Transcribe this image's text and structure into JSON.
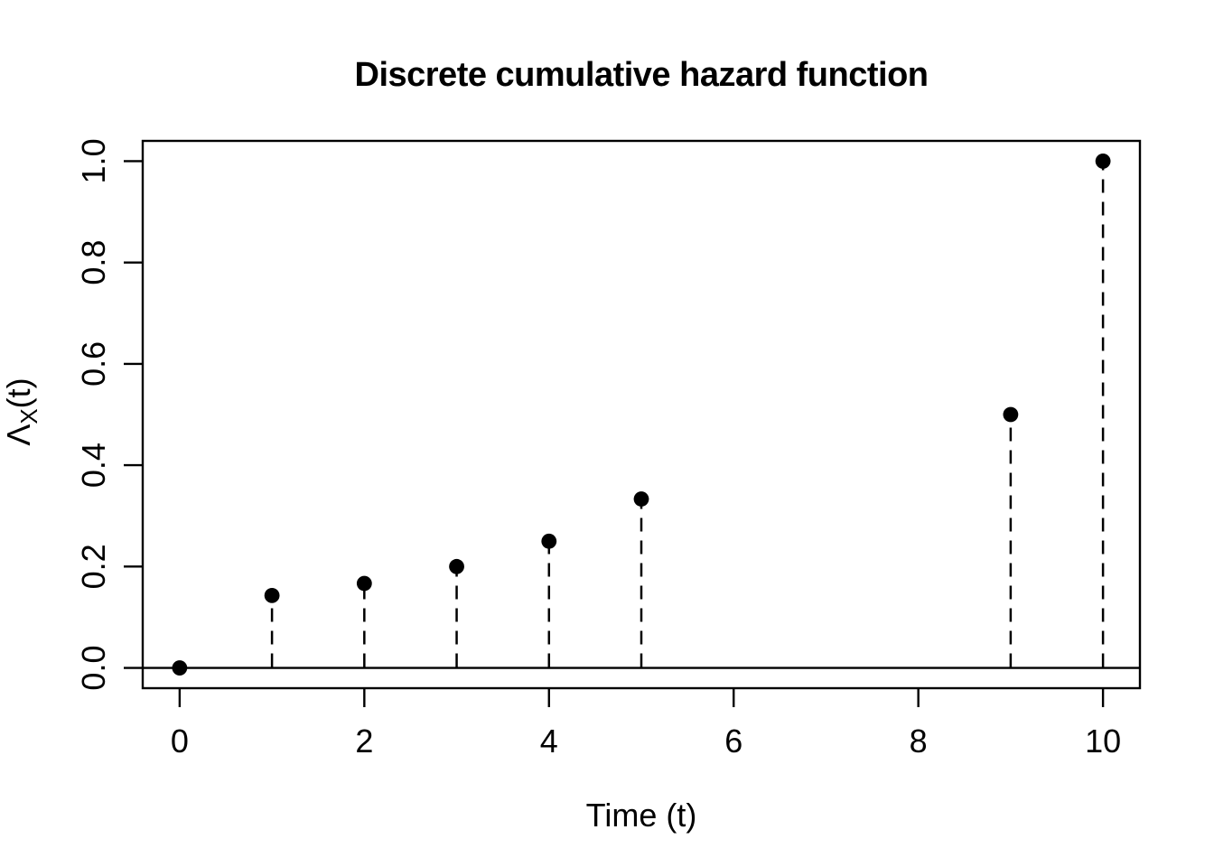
{
  "chart_data": {
    "type": "scatter",
    "subtype": "stem-plot",
    "title": "Discrete cumulative hazard function",
    "xlabel": "Time (t)",
    "ylabel": "ΛX(t)",
    "ylabel_parts": {
      "symbol": "Λ",
      "subscript": "X",
      "suffix": "(t)"
    },
    "x": [
      0,
      1,
      2,
      3,
      4,
      5,
      9,
      10
    ],
    "y": [
      0,
      0.1429,
      0.1667,
      0.2,
      0.25,
      0.3333,
      0.5,
      1.0
    ],
    "baseline_y": 0,
    "xlim": [
      -0.4,
      10.4
    ],
    "ylim": [
      -0.04,
      1.04
    ],
    "xticks": [
      0,
      2,
      4,
      6,
      8,
      10
    ],
    "xtick_labels": [
      "0",
      "2",
      "4",
      "6",
      "8",
      "10"
    ],
    "ytick_values": [
      0,
      0.2,
      0.4,
      0.6,
      0.8,
      1.0
    ],
    "ytick_labels": [
      "0.0",
      "0.2",
      "0.4",
      "0.6",
      "0.8",
      "1.0"
    ],
    "grid": false,
    "legend": "none",
    "frame": "box",
    "point_style": "filled-circle",
    "stem_style": "dashed",
    "color": "#000000",
    "background": "#ffffff"
  }
}
